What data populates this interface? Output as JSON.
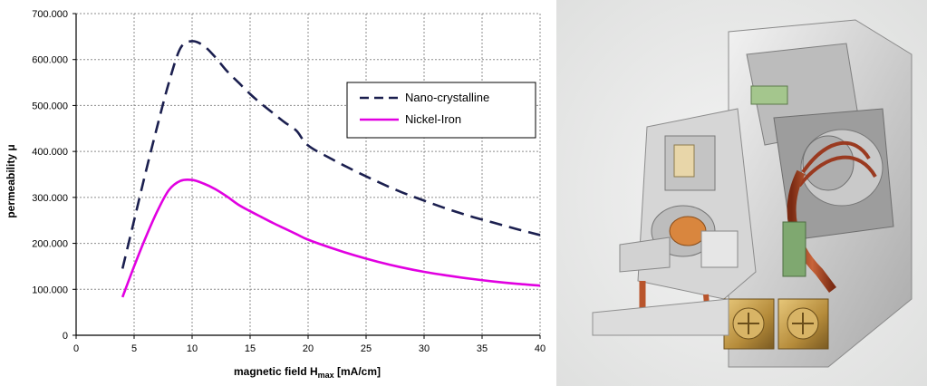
{
  "chart_data": {
    "type": "line",
    "title": "",
    "xlabel_main": "magnetic field  H",
    "xlabel_sub": "max",
    "xlabel_unit": " [mA/cm]",
    "ylabel": "permeability  μ",
    "xlim": [
      0,
      40
    ],
    "ylim": [
      0,
      700000
    ],
    "x_ticks": [
      0,
      5,
      10,
      15,
      20,
      25,
      30,
      35,
      40
    ],
    "x_tick_labels": [
      "0",
      "5",
      "10",
      "15",
      "20",
      "25",
      "30",
      "35",
      "40"
    ],
    "y_ticks": [
      0,
      100000,
      200000,
      300000,
      400000,
      500000,
      600000,
      700000
    ],
    "y_tick_labels": [
      "0",
      "100.000",
      "200.000",
      "300.000",
      "400.000",
      "500.000",
      "600.000",
      "700.000"
    ],
    "grid": true,
    "legend_position": "right",
    "series": [
      {
        "name": "Nano-crystalline",
        "color": "#1b1f4f",
        "style": "dashed",
        "x": [
          4,
          5,
          6,
          7,
          8,
          9,
          10,
          11,
          12,
          13,
          14,
          15,
          16,
          17,
          18,
          19,
          20,
          22,
          24,
          26,
          28,
          30,
          32,
          34,
          36,
          38,
          40
        ],
        "y": [
          145000,
          250000,
          355000,
          455000,
          550000,
          625000,
          640000,
          630000,
          605000,
          575000,
          550000,
          525000,
          503000,
          483000,
          463000,
          445000,
          413000,
          384000,
          358000,
          334000,
          312000,
          293000,
          275000,
          259000,
          245000,
          231000,
          218000
        ]
      },
      {
        "name": "Nickel-Iron",
        "color": "#e100e1",
        "style": "solid",
        "x": [
          4,
          5,
          6,
          7,
          8,
          9,
          10,
          11,
          12,
          13,
          14,
          15,
          16,
          17,
          18,
          19,
          20,
          22,
          24,
          26,
          28,
          30,
          32,
          34,
          36,
          38,
          40
        ],
        "y": [
          83000,
          150000,
          213000,
          270000,
          316000,
          336000,
          338000,
          330000,
          318000,
          302000,
          284000,
          270000,
          257000,
          244000,
          232000,
          220000,
          208000,
          190000,
          174000,
          160000,
          148000,
          138000,
          130000,
          123000,
          117000,
          112000,
          108000
        ]
      }
    ]
  }
}
